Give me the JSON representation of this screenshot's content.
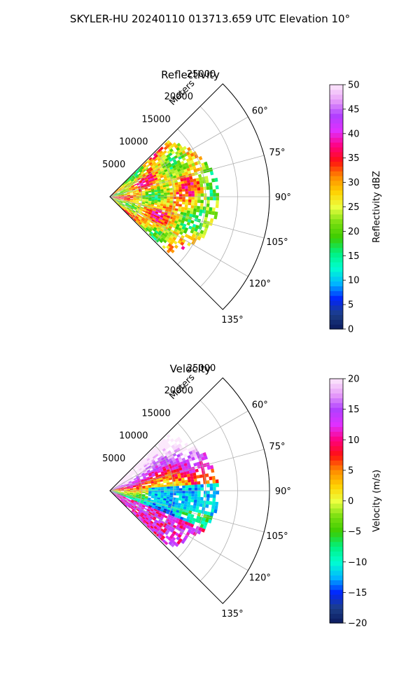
{
  "suptitle": "SKYLER-HU  20240110  013713.659 UTC Elevation 10°",
  "chart_data": [
    {
      "type": "heatmap",
      "title": "Reflectivity",
      "projection": "polar sector (PPI)",
      "range_axis_label": "Meters",
      "range_ticks": [
        5000,
        10000,
        15000,
        20000,
        25000
      ],
      "range_tick_labels": [
        "5000",
        "10000",
        "15000",
        "20000",
        "25000"
      ],
      "rlim": [
        0,
        25000
      ],
      "azimuth_range_deg": [
        45,
        135
      ],
      "azimuth_ticks": [
        60,
        75,
        90,
        105,
        120,
        135
      ],
      "azimuth_tick_labels": [
        "60°",
        "75°",
        "90°",
        "105°",
        "120°",
        "135°"
      ],
      "grid": true,
      "data_extent_m": 17000,
      "colorbar": {
        "label": "Reflectivity dBZ",
        "range": [
          0,
          50
        ],
        "ticks": [
          0,
          5,
          10,
          15,
          20,
          25,
          30,
          35,
          40,
          45,
          50
        ],
        "tick_labels": [
          "0",
          "5",
          "10",
          "15",
          "20",
          "25",
          "30",
          "35",
          "40",
          "45",
          "50"
        ],
        "colormap": [
          "#0b1a5e",
          "#1d3f88",
          "#0024ff",
          "#00b7ff",
          "#00ffd0",
          "#00f080",
          "#3ccc00",
          "#7adf10",
          "#ecff40",
          "#ffd000",
          "#ff8a00",
          "#ff1010",
          "#ff0080",
          "#e030ff",
          "#b040ff",
          "#e89ff8",
          "#fce8fc"
        ]
      }
    },
    {
      "type": "heatmap",
      "title": "Velocity",
      "projection": "polar sector (PPI)",
      "range_axis_label": "Meters",
      "range_ticks": [
        5000,
        10000,
        15000,
        20000,
        25000
      ],
      "range_tick_labels": [
        "5000",
        "10000",
        "15000",
        "20000",
        "25000"
      ],
      "rlim": [
        0,
        25000
      ],
      "azimuth_range_deg": [
        45,
        135
      ],
      "azimuth_ticks": [
        60,
        75,
        90,
        105,
        120,
        135
      ],
      "azimuth_tick_labels": [
        "60°",
        "75°",
        "90°",
        "105°",
        "120°",
        "135°"
      ],
      "grid": true,
      "data_extent_m": 17000,
      "colorbar": {
        "label": "Velocity (m/s)",
        "range": [
          -20,
          20
        ],
        "ticks": [
          -20,
          -15,
          -10,
          -5,
          0,
          5,
          10,
          15,
          20
        ],
        "tick_labels": [
          "−20",
          "−15",
          "−10",
          "−5",
          "0",
          "5",
          "10",
          "15",
          "20"
        ],
        "colormap": [
          "#0b1a5e",
          "#1d3f88",
          "#0024ff",
          "#00b7ff",
          "#00ffd0",
          "#00f080",
          "#3ccc00",
          "#7adf10",
          "#ecff40",
          "#ffd000",
          "#ff8a00",
          "#ff1010",
          "#ff0080",
          "#e030ff",
          "#b040ff",
          "#e89ff8",
          "#fce8fc"
        ]
      }
    }
  ]
}
